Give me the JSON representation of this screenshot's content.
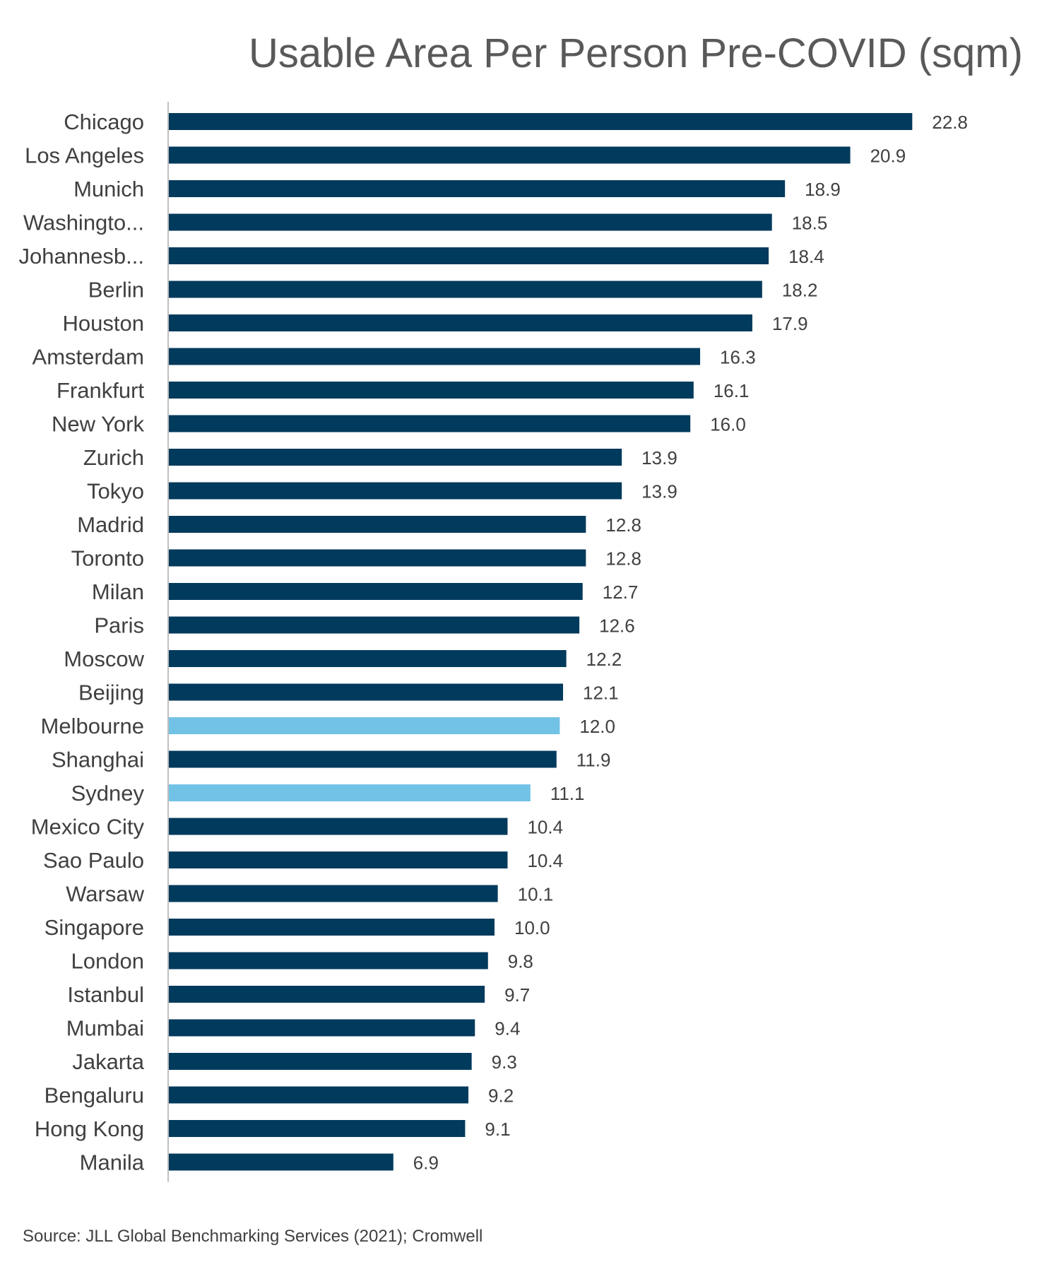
{
  "chart_data": {
    "type": "bar",
    "orientation": "horizontal",
    "title": "Usable Area Per Person Pre-COVID (sqm)",
    "xlabel": "",
    "ylabel": "",
    "grid": false,
    "legend": "none",
    "xlim": [
      0,
      24
    ],
    "categories": [
      "Chicago",
      "Los Angeles",
      "Munich",
      "Washingto...",
      "Johannesb...",
      "Berlin",
      "Houston",
      "Amsterdam",
      "Frankfurt",
      "New York",
      "Zurich",
      "Tokyo",
      "Madrid",
      "Toronto",
      "Milan",
      "Paris",
      "Moscow",
      "Beijing",
      "Melbourne",
      "Shanghai",
      "Sydney",
      "Mexico City",
      "Sao Paulo",
      "Warsaw",
      "Singapore",
      "London",
      "Istanbul",
      "Mumbai",
      "Jakarta",
      "Bengaluru",
      "Hong Kong",
      "Manila"
    ],
    "values": [
      22.8,
      20.9,
      18.9,
      18.5,
      18.4,
      18.2,
      17.9,
      16.3,
      16.1,
      16.0,
      13.9,
      13.9,
      12.8,
      12.8,
      12.7,
      12.6,
      12.2,
      12.1,
      12.0,
      11.9,
      11.1,
      10.4,
      10.4,
      10.1,
      10.0,
      9.8,
      9.7,
      9.4,
      9.3,
      9.2,
      9.1,
      6.9
    ],
    "value_labels": [
      "22.8",
      "20.9",
      "18.9",
      "18.5",
      "18.4",
      "18.2",
      "17.9",
      "16.3",
      "16.1",
      "16.0",
      "13.9",
      "13.9",
      "12.8",
      "12.8",
      "12.7",
      "12.6",
      "12.2",
      "12.1",
      "12.0",
      "11.9",
      "11.1",
      "10.4",
      "10.4",
      "10.1",
      "10.0",
      "9.8",
      "9.7",
      "9.4",
      "9.3",
      "9.2",
      "9.1",
      "6.9"
    ],
    "highlight": [
      "Melbourne",
      "Sydney"
    ],
    "colors": {
      "default": "#003a5c",
      "highlight": "#72c2e6",
      "axis": "#bfbfbf"
    }
  },
  "source": "Source: JLL Global Benchmarking Services (2021); Cromwell"
}
